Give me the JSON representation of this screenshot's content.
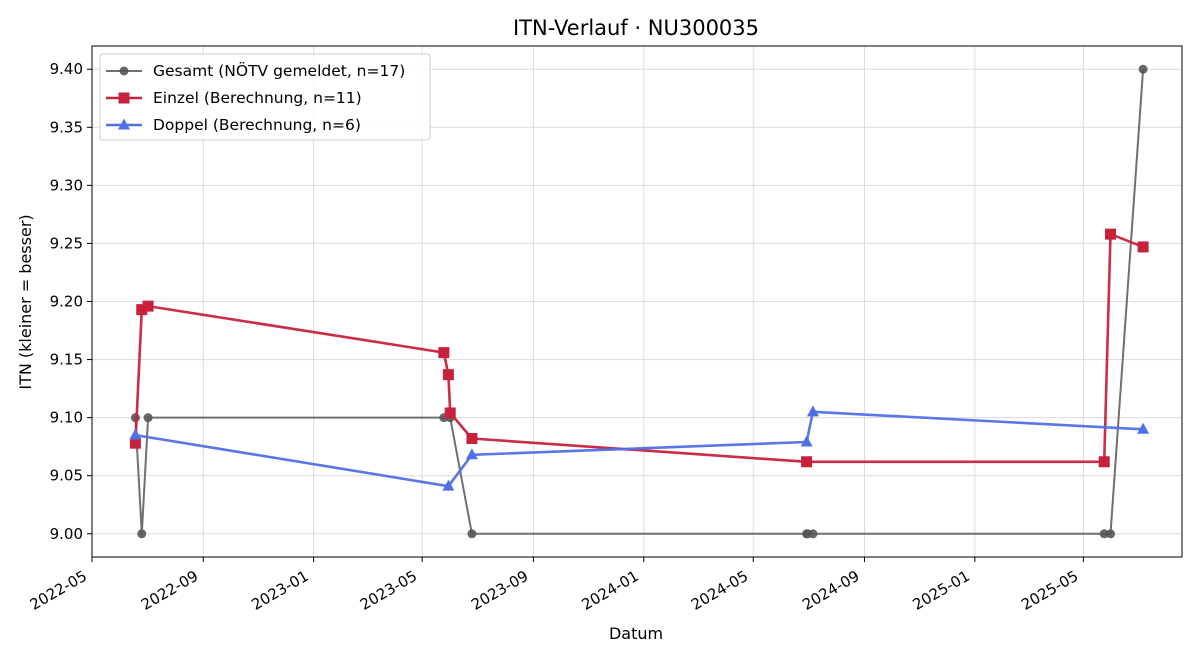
{
  "chart_data": {
    "type": "line",
    "title": "ITN-Verlauf · NU300035",
    "xlabel": "Datum",
    "ylabel": "ITN  (kleiner = besser)",
    "xlim": [
      "2022-05-01",
      "2025-08-18"
    ],
    "ylim": [
      8.98,
      9.42
    ],
    "x_ticks": [
      "2022-05",
      "2022-09",
      "2023-01",
      "2023-05",
      "2023-09",
      "2024-01",
      "2024-05",
      "2024-09",
      "2025-01",
      "2025-05"
    ],
    "y_ticks": [
      "9.00",
      "9.05",
      "9.10",
      "9.15",
      "9.20",
      "9.25",
      "9.30",
      "9.35",
      "9.40"
    ],
    "grid": true,
    "legend_position": "top-left",
    "series": [
      {
        "name": "Gesamt (NÖTV gemeldet, n=17)",
        "color": "#707070",
        "marker": "circle",
        "points": [
          {
            "x": "2022-06-18",
            "y": 9.1
          },
          {
            "x": "2022-06-25",
            "y": 9.0
          },
          {
            "x": "2022-07-02",
            "y": 9.1
          },
          {
            "x": "2023-05-25",
            "y": 9.1
          },
          {
            "x": "2023-06-01",
            "y": 9.1
          },
          {
            "x": "2023-06-25",
            "y": 9.0
          },
          {
            "x": "2024-06-29",
            "y": 9.0
          },
          {
            "x": "2024-06-30",
            "y": 9.0
          },
          {
            "x": "2024-07-06",
            "y": 9.0
          },
          {
            "x": "2025-05-24",
            "y": 9.0
          },
          {
            "x": "2025-05-31",
            "y": 9.0
          },
          {
            "x": "2025-07-06",
            "y": 9.4
          }
        ]
      },
      {
        "name": "Einzel (Berechnung, n=11)",
        "color": "#c8213e",
        "marker": "square",
        "points": [
          {
            "x": "2022-06-18",
            "y": 9.078
          },
          {
            "x": "2022-06-25",
            "y": 9.193
          },
          {
            "x": "2022-07-02",
            "y": 9.196
          },
          {
            "x": "2023-05-25",
            "y": 9.156
          },
          {
            "x": "2023-05-30",
            "y": 9.137
          },
          {
            "x": "2023-06-01",
            "y": 9.104
          },
          {
            "x": "2023-06-25",
            "y": 9.082
          },
          {
            "x": "2024-06-29",
            "y": 9.062
          },
          {
            "x": "2025-05-24",
            "y": 9.062
          },
          {
            "x": "2025-05-31",
            "y": 9.258
          },
          {
            "x": "2025-07-06",
            "y": 9.247
          }
        ]
      },
      {
        "name": "Doppel (Berechnung, n=6)",
        "color": "#5070e8",
        "marker": "triangle",
        "points": [
          {
            "x": "2022-06-18",
            "y": 9.085
          },
          {
            "x": "2023-05-30",
            "y": 9.041
          },
          {
            "x": "2023-06-25",
            "y": 9.068
          },
          {
            "x": "2024-06-29",
            "y": 9.079
          },
          {
            "x": "2024-07-06",
            "y": 9.105
          },
          {
            "x": "2025-07-06",
            "y": 9.09
          }
        ]
      }
    ]
  }
}
